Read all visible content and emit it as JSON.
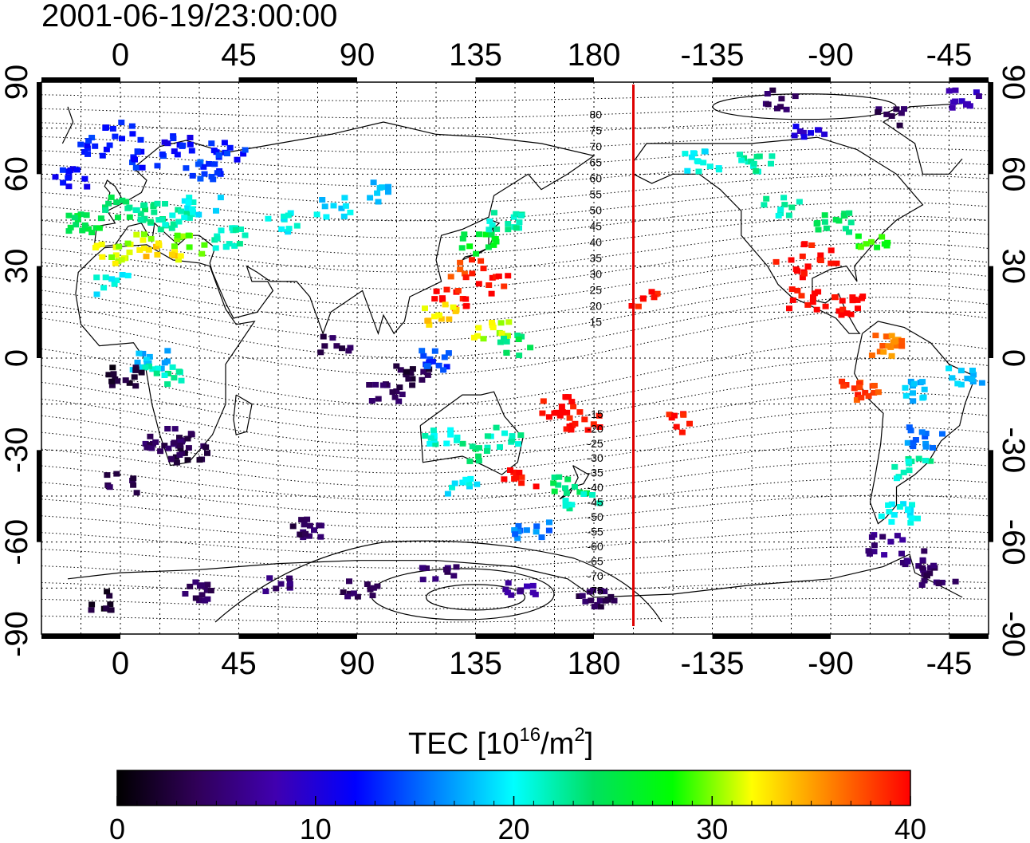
{
  "title": "2001-06-19/23:00:00",
  "map": {
    "top_lon_labels": [
      "0",
      "45",
      "90",
      "135",
      "180",
      "-135",
      "-90",
      "-45"
    ],
    "bottom_lon_labels": [
      "0",
      "45",
      "90",
      "135",
      "180",
      "-135",
      "-90",
      "-45"
    ],
    "lat_labels": [
      "90",
      "60",
      "30",
      "0",
      "-30",
      "-60",
      "-90"
    ],
    "contour_labels_north": [
      "80",
      "75",
      "70",
      "65",
      "60",
      "55",
      "50",
      "45",
      "40",
      "35",
      "30",
      "25",
      "20",
      "15"
    ],
    "contour_labels_south": [
      "-15",
      "-20",
      "-25",
      "-30",
      "-35",
      "-40",
      "-45",
      "-50",
      "-55",
      "-60",
      "-65",
      "-70",
      "-75"
    ],
    "terminator_line": {
      "longitude": 195,
      "color": "#dd0000"
    },
    "observation_blocks": [
      {
        "lon": -20,
        "lat": 60,
        "value": 12
      },
      {
        "lon": -10,
        "lat": 70,
        "value": 13
      },
      {
        "lon": 0,
        "lat": 75,
        "value": 12
      },
      {
        "lon": 10,
        "lat": 65,
        "value": 13
      },
      {
        "lon": 20,
        "lat": 70,
        "value": 12
      },
      {
        "lon": 30,
        "lat": 62,
        "value": 14
      },
      {
        "lon": 40,
        "lat": 68,
        "value": 13
      },
      {
        "lon": -15,
        "lat": 45,
        "value": 25
      },
      {
        "lon": 0,
        "lat": 50,
        "value": 24
      },
      {
        "lon": 10,
        "lat": 48,
        "value": 23
      },
      {
        "lon": 20,
        "lat": 46,
        "value": 22
      },
      {
        "lon": 30,
        "lat": 50,
        "value": 20
      },
      {
        "lon": 5,
        "lat": 38,
        "value": 31
      },
      {
        "lon": 15,
        "lat": 36,
        "value": 33
      },
      {
        "lon": 25,
        "lat": 38,
        "value": 30
      },
      {
        "lon": -5,
        "lat": 35,
        "value": 31
      },
      {
        "lon": 40,
        "lat": 40,
        "value": 22
      },
      {
        "lon": 60,
        "lat": 45,
        "value": 20
      },
      {
        "lon": 80,
        "lat": 50,
        "value": 19
      },
      {
        "lon": 100,
        "lat": 55,
        "value": 18
      },
      {
        "lon": 130,
        "lat": 30,
        "value": 38
      },
      {
        "lon": 140,
        "lat": 25,
        "value": 40
      },
      {
        "lon": 125,
        "lat": 20,
        "value": 40
      },
      {
        "lon": 135,
        "lat": 38,
        "value": 26
      },
      {
        "lon": 145,
        "lat": 45,
        "value": 22
      },
      {
        "lon": 140,
        "lat": 10,
        "value": 31
      },
      {
        "lon": 150,
        "lat": 5,
        "value": 24
      },
      {
        "lon": 120,
        "lat": 15,
        "value": 33
      },
      {
        "lon": 165,
        "lat": -15,
        "value": 40
      },
      {
        "lon": 175,
        "lat": -20,
        "value": 40
      },
      {
        "lon": 170,
        "lat": -40,
        "value": 24
      },
      {
        "lon": 175,
        "lat": -45,
        "value": 22
      },
      {
        "lon": 145,
        "lat": -25,
        "value": 22
      },
      {
        "lon": 135,
        "lat": -30,
        "value": 24
      },
      {
        "lon": 120,
        "lat": -25,
        "value": 21
      },
      {
        "lon": 150,
        "lat": -38,
        "value": 40
      },
      {
        "lon": 155,
        "lat": -55,
        "value": 16
      },
      {
        "lon": 130,
        "lat": -40,
        "value": 20
      },
      {
        "lon": -95,
        "lat": 35,
        "value": 40
      },
      {
        "lon": -105,
        "lat": 30,
        "value": 40
      },
      {
        "lon": -90,
        "lat": 45,
        "value": 24
      },
      {
        "lon": -110,
        "lat": 50,
        "value": 22
      },
      {
        "lon": -75,
        "lat": 40,
        "value": 28
      },
      {
        "lon": -100,
        "lat": 20,
        "value": 40
      },
      {
        "lon": -85,
        "lat": 18,
        "value": 40
      },
      {
        "lon": -160,
        "lat": 20,
        "value": 40
      },
      {
        "lon": -150,
        "lat": -20,
        "value": 40
      },
      {
        "lon": -60,
        "lat": -10,
        "value": 18
      },
      {
        "lon": -55,
        "lat": -25,
        "value": 16
      },
      {
        "lon": -60,
        "lat": -35,
        "value": 22
      },
      {
        "lon": -65,
        "lat": -50,
        "value": 20
      },
      {
        "lon": -60,
        "lat": -65,
        "value": 5
      },
      {
        "lon": -50,
        "lat": -70,
        "value": 4
      },
      {
        "lon": -70,
        "lat": -60,
        "value": 6
      },
      {
        "lon": -80,
        "lat": -10,
        "value": 38
      },
      {
        "lon": -70,
        "lat": 5,
        "value": 36
      },
      {
        "lon": -40,
        "lat": -5,
        "value": 18
      },
      {
        "lon": -120,
        "lat": 65,
        "value": 22
      },
      {
        "lon": -140,
        "lat": 65,
        "value": 20
      },
      {
        "lon": -100,
        "lat": 75,
        "value": 10
      },
      {
        "lon": -70,
        "lat": 80,
        "value": 4
      },
      {
        "lon": -110,
        "lat": 85,
        "value": 4
      },
      {
        "lon": -40,
        "lat": 85,
        "value": 8
      },
      {
        "lon": 20,
        "lat": -25,
        "value": 4
      },
      {
        "lon": 25,
        "lat": -30,
        "value": 3
      },
      {
        "lon": 15,
        "lat": -28,
        "value": 4
      },
      {
        "lon": 0,
        "lat": -40,
        "value": 4
      },
      {
        "lon": 70,
        "lat": -55,
        "value": 4
      },
      {
        "lon": 120,
        "lat": -70,
        "value": 5
      },
      {
        "lon": 90,
        "lat": -75,
        "value": 4
      },
      {
        "lon": 60,
        "lat": -73,
        "value": 5
      },
      {
        "lon": 30,
        "lat": -75,
        "value": 4
      },
      {
        "lon": -10,
        "lat": -78,
        "value": 2
      },
      {
        "lon": 180,
        "lat": -78,
        "value": 4
      },
      {
        "lon": 150,
        "lat": -75,
        "value": 7
      },
      {
        "lon": 110,
        "lat": -5,
        "value": 3
      },
      {
        "lon": 80,
        "lat": 5,
        "value": 4
      },
      {
        "lon": 10,
        "lat": 0,
        "value": 18
      },
      {
        "lon": 15,
        "lat": -5,
        "value": 22
      },
      {
        "lon": 0,
        "lat": -5,
        "value": 2
      },
      {
        "lon": 120,
        "lat": 0,
        "value": 14
      },
      {
        "lon": 100,
        "lat": -10,
        "value": 4
      },
      {
        "lon": -5,
        "lat": 25,
        "value": 20
      }
    ]
  },
  "colorbar": {
    "label_main": "TEC  [10",
    "label_sup1": "16",
    "label_mid": "/m",
    "label_sup2": "2",
    "label_end": "]",
    "ticks": [
      "0",
      "10",
      "20",
      "30",
      "40"
    ],
    "min": 0,
    "max": 40,
    "stops": [
      "#000000",
      "#300058",
      "#4000b0",
      "#0000ff",
      "#0080ff",
      "#00ffff",
      "#00e060",
      "#00ff00",
      "#ffff00",
      "#ff8000",
      "#ff0000"
    ]
  }
}
